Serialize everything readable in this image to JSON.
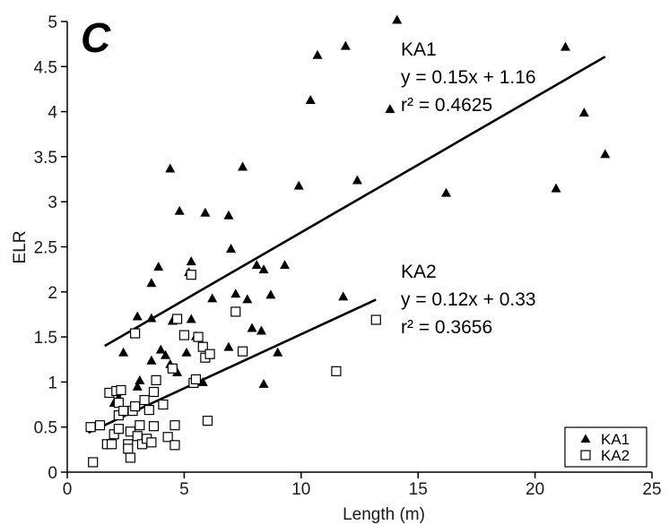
{
  "chart_data": {
    "type": "scatter",
    "panel_label": "C",
    "xlabel": "Length (m)",
    "ylabel": "ELR",
    "xlim": [
      0,
      25
    ],
    "ylim": [
      0,
      5
    ],
    "xticks": [
      0,
      5,
      10,
      15,
      20,
      25
    ],
    "yticks": [
      0,
      0.5,
      1,
      1.5,
      2,
      2.5,
      3,
      3.5,
      4,
      4.5,
      5
    ],
    "ytick_labels": [
      "0",
      "0.5",
      "1",
      "1.5",
      "2",
      "2.5",
      "3",
      "3.5",
      "4",
      "4.5",
      "5"
    ],
    "grid": false,
    "legend_position": "bottom-right",
    "series": [
      {
        "name": "KA1",
        "marker": "filled-triangle",
        "color": "#000000",
        "points": [
          [
            14.1,
            5.02
          ],
          [
            21.3,
            4.72
          ],
          [
            11.9,
            4.73
          ],
          [
            10.7,
            4.63
          ],
          [
            10.4,
            4.13
          ],
          [
            13.8,
            4.03
          ],
          [
            22.1,
            3.99
          ],
          [
            23.0,
            3.53
          ],
          [
            4.4,
            3.37
          ],
          [
            7.5,
            3.39
          ],
          [
            12.4,
            3.24
          ],
          [
            9.9,
            3.18
          ],
          [
            16.2,
            3.1
          ],
          [
            20.9,
            3.15
          ],
          [
            4.8,
            2.9
          ],
          [
            5.9,
            2.88
          ],
          [
            6.9,
            2.85
          ],
          [
            7.0,
            2.48
          ],
          [
            8.1,
            2.3
          ],
          [
            9.3,
            2.3
          ],
          [
            3.9,
            2.28
          ],
          [
            5.3,
            2.34
          ],
          [
            5.2,
            2.22
          ],
          [
            8.4,
            2.25
          ],
          [
            3.6,
            2.1
          ],
          [
            7.2,
            1.98
          ],
          [
            6.2,
            1.93
          ],
          [
            7.7,
            1.92
          ],
          [
            8.7,
            1.97
          ],
          [
            11.8,
            1.95
          ],
          [
            3.0,
            1.73
          ],
          [
            3.6,
            1.71
          ],
          [
            4.5,
            1.68
          ],
          [
            5.3,
            1.7
          ],
          [
            7.9,
            1.6
          ],
          [
            8.3,
            1.57
          ],
          [
            6.9,
            1.39
          ],
          [
            2.4,
            1.33
          ],
          [
            4.0,
            1.36
          ],
          [
            4.2,
            1.3
          ],
          [
            5.1,
            1.33
          ],
          [
            5.5,
            1.51
          ],
          [
            9.0,
            1.33
          ],
          [
            3.6,
            1.24
          ],
          [
            4.7,
            1.11
          ],
          [
            3.1,
            1.02
          ],
          [
            3.0,
            0.95
          ],
          [
            5.8,
            1.0
          ],
          [
            8.4,
            0.98
          ],
          [
            2.0,
            0.77
          ],
          [
            2.2,
            0.83
          ],
          [
            2.9,
            0.72
          ],
          [
            4.4,
            1.2
          ]
        ]
      },
      {
        "name": "KA2",
        "marker": "open-square",
        "color": "#000000",
        "points": [
          [
            1.0,
            0.5
          ],
          [
            1.1,
            0.11
          ],
          [
            1.4,
            0.52
          ],
          [
            1.7,
            0.31
          ],
          [
            1.8,
            0.88
          ],
          [
            1.9,
            0.31
          ],
          [
            2.0,
            0.42
          ],
          [
            2.1,
            0.9
          ],
          [
            2.2,
            0.77
          ],
          [
            2.3,
            0.91
          ],
          [
            2.2,
            0.63
          ],
          [
            2.4,
            0.68
          ],
          [
            2.2,
            0.48
          ],
          [
            2.6,
            0.31
          ],
          [
            2.6,
            0.26
          ],
          [
            2.7,
            0.16
          ],
          [
            2.7,
            0.45
          ],
          [
            2.8,
            0.68
          ],
          [
            2.9,
            0.73
          ],
          [
            2.9,
            1.54
          ],
          [
            3.0,
            0.4
          ],
          [
            3.1,
            0.52
          ],
          [
            3.2,
            0.31
          ],
          [
            3.3,
            0.8
          ],
          [
            3.4,
            0.37
          ],
          [
            3.5,
            0.69
          ],
          [
            3.6,
            0.33
          ],
          [
            3.7,
            0.51
          ],
          [
            3.7,
            0.89
          ],
          [
            3.8,
            1.02
          ],
          [
            4.1,
            0.75
          ],
          [
            4.3,
            0.39
          ],
          [
            4.6,
            0.52
          ],
          [
            4.6,
            0.3
          ],
          [
            4.5,
            1.15
          ],
          [
            4.7,
            1.7
          ],
          [
            5.0,
            1.52
          ],
          [
            5.3,
            2.19
          ],
          [
            5.4,
            0.99
          ],
          [
            5.5,
            1.03
          ],
          [
            5.6,
            1.5
          ],
          [
            5.8,
            1.39
          ],
          [
            5.9,
            1.27
          ],
          [
            6.0,
            0.57
          ],
          [
            6.1,
            1.31
          ],
          [
            7.2,
            1.78
          ],
          [
            7.5,
            1.34
          ],
          [
            11.5,
            1.12
          ],
          [
            13.2,
            1.69
          ]
        ]
      }
    ],
    "trendlines": [
      {
        "series": "KA1",
        "x": [
          1.6,
          23.0
        ],
        "slope": 0.15,
        "intercept": 1.16,
        "equation": "y = 0.15x + 1.16",
        "r2_text": "r² = 0.4625",
        "label": "KA1"
      },
      {
        "series": "KA2",
        "x": [
          0.9,
          13.2
        ],
        "slope": 0.12,
        "intercept": 0.33,
        "equation": "y = 0.12x + 0.33",
        "r2_text": "r² = 0.3656",
        "label": "KA2"
      }
    ],
    "legend": [
      {
        "label": "KA1",
        "marker": "filled-triangle"
      },
      {
        "label": "KA2",
        "marker": "open-square"
      }
    ]
  }
}
